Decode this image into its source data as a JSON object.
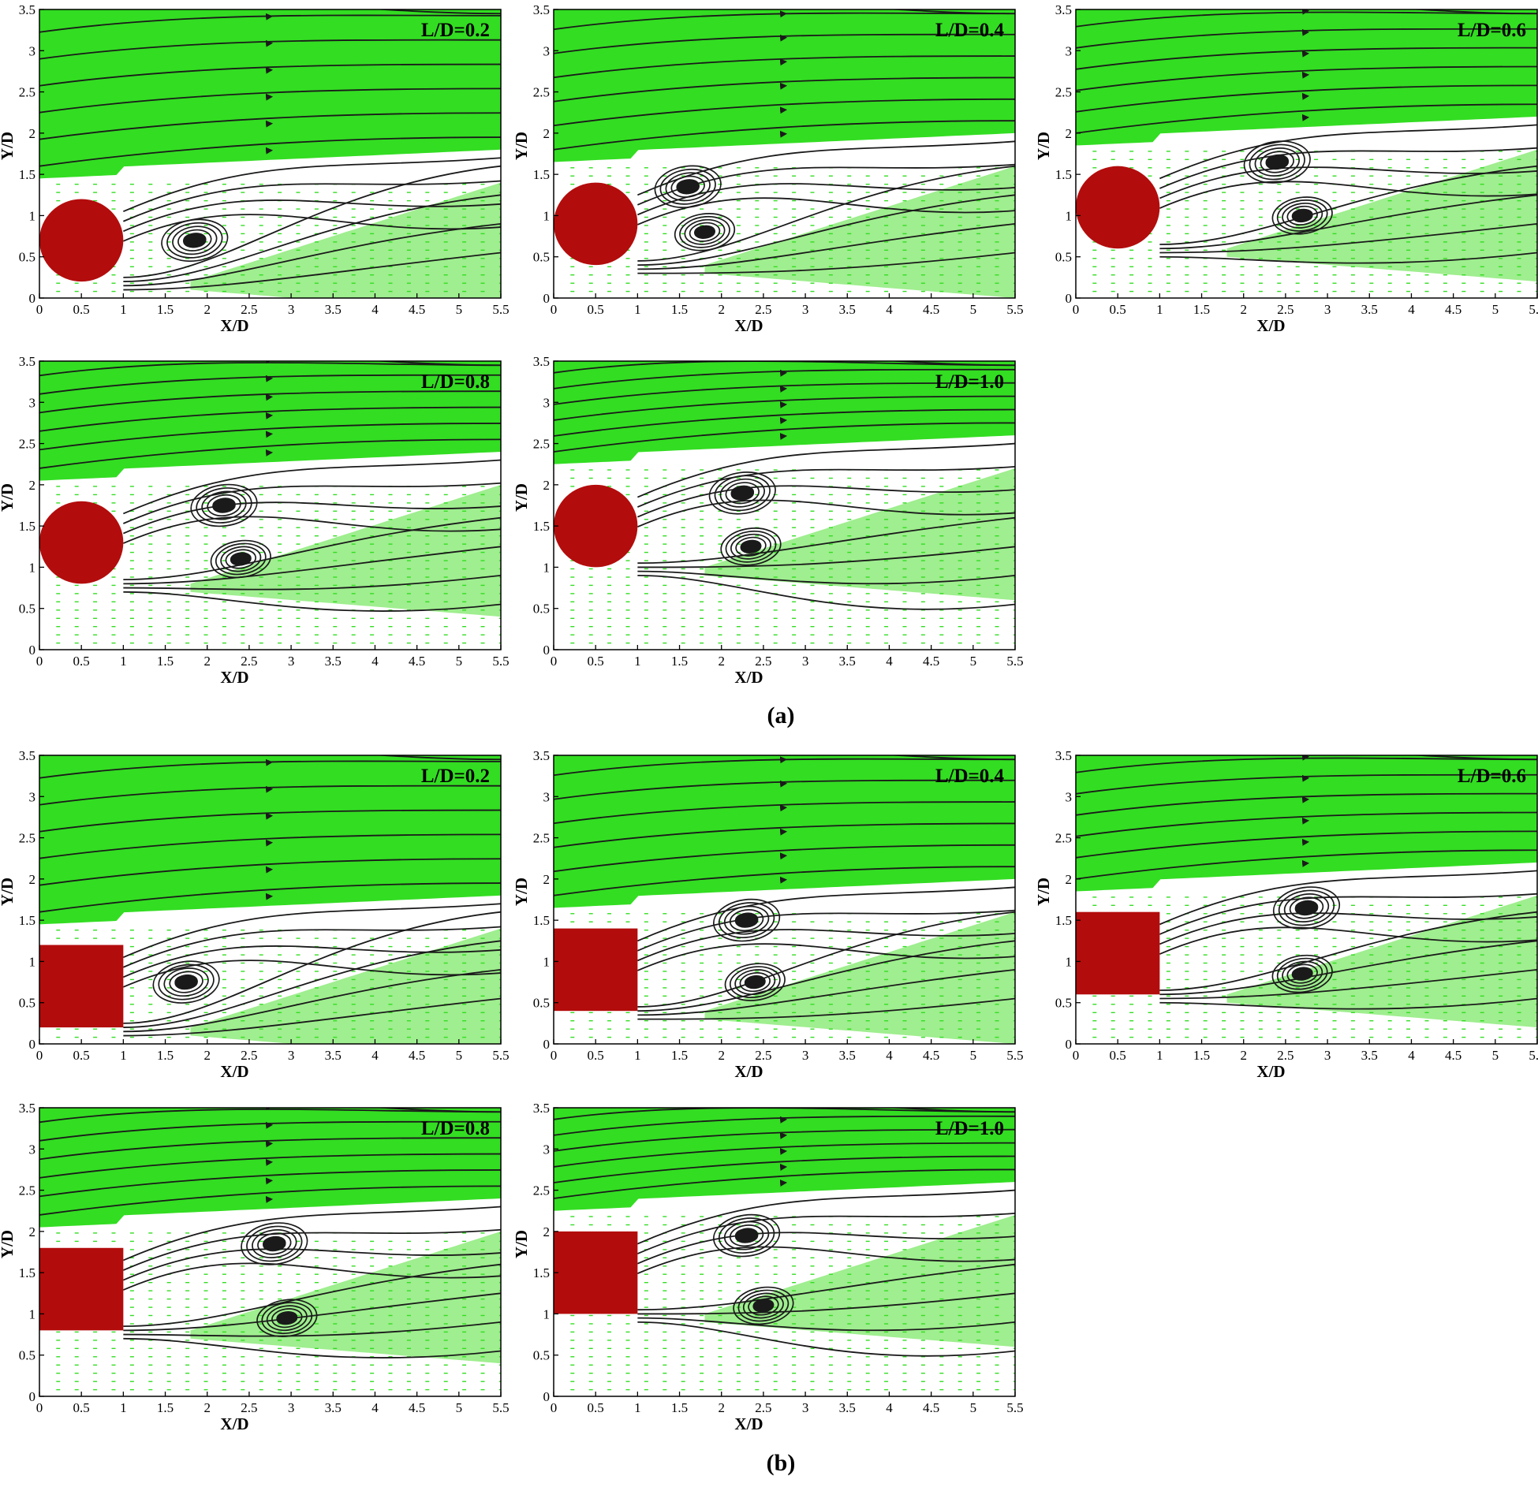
{
  "groups": [
    {
      "caption": "(a)",
      "shape": "circle",
      "panels": [
        {
          "label": "L/D=0.2",
          "center_y": 0.7,
          "vortices": [
            {
              "x": 1.85,
              "y": 0.7
            }
          ]
        },
        {
          "label": "L/D=0.4",
          "center_y": 0.9,
          "vortices": [
            {
              "x": 1.6,
              "y": 1.35
            },
            {
              "x": 1.8,
              "y": 0.8
            }
          ]
        },
        {
          "label": "L/D=0.6",
          "center_y": 1.1,
          "vortices": [
            {
              "x": 2.4,
              "y": 1.65
            },
            {
              "x": 2.7,
              "y": 1.0
            }
          ]
        },
        {
          "label": "L/D=0.8",
          "center_y": 1.3,
          "vortices": [
            {
              "x": 2.2,
              "y": 1.75
            },
            {
              "x": 2.4,
              "y": 1.1
            }
          ]
        },
        {
          "label": "L/D=1.0",
          "center_y": 1.5,
          "vortices": [
            {
              "x": 2.25,
              "y": 1.9
            },
            {
              "x": 2.35,
              "y": 1.25
            }
          ]
        }
      ]
    },
    {
      "caption": "(b)",
      "shape": "square",
      "panels": [
        {
          "label": "L/D=0.2",
          "center_y": 0.7,
          "vortices": [
            {
              "x": 1.75,
              "y": 0.75
            }
          ]
        },
        {
          "label": "L/D=0.4",
          "center_y": 0.9,
          "vortices": [
            {
              "x": 2.3,
              "y": 1.5
            },
            {
              "x": 2.4,
              "y": 0.75
            }
          ]
        },
        {
          "label": "L/D=0.6",
          "center_y": 1.1,
          "vortices": [
            {
              "x": 2.75,
              "y": 1.65
            },
            {
              "x": 2.7,
              "y": 0.85
            }
          ]
        },
        {
          "label": "L/D=0.8",
          "center_y": 1.3,
          "vortices": [
            {
              "x": 2.8,
              "y": 1.85
            },
            {
              "x": 2.95,
              "y": 0.95
            }
          ]
        },
        {
          "label": "L/D=1.0",
          "center_y": 1.5,
          "vortices": [
            {
              "x": 2.3,
              "y": 1.95
            },
            {
              "x": 2.5,
              "y": 1.1
            }
          ]
        }
      ]
    }
  ],
  "axes": {
    "xlabel": "X/D",
    "ylabel": "Y/D",
    "xlim": [
      0,
      5.5
    ],
    "ylim": [
      0,
      3.5
    ],
    "xticks": [
      "0",
      "0.5",
      "1",
      "1.5",
      "2",
      "2.5",
      "3",
      "3.5",
      "4",
      "4.5",
      "5",
      "5.5"
    ],
    "yticks": [
      "0",
      "0.5",
      "1",
      "1.5",
      "2",
      "2.5",
      "3",
      "3.5"
    ]
  },
  "colors": {
    "vector_field": "#33dd22",
    "vector_field_light": "#7fe86a",
    "streamline": "#1a1a1a",
    "obstacle": "#b30c0c"
  }
}
